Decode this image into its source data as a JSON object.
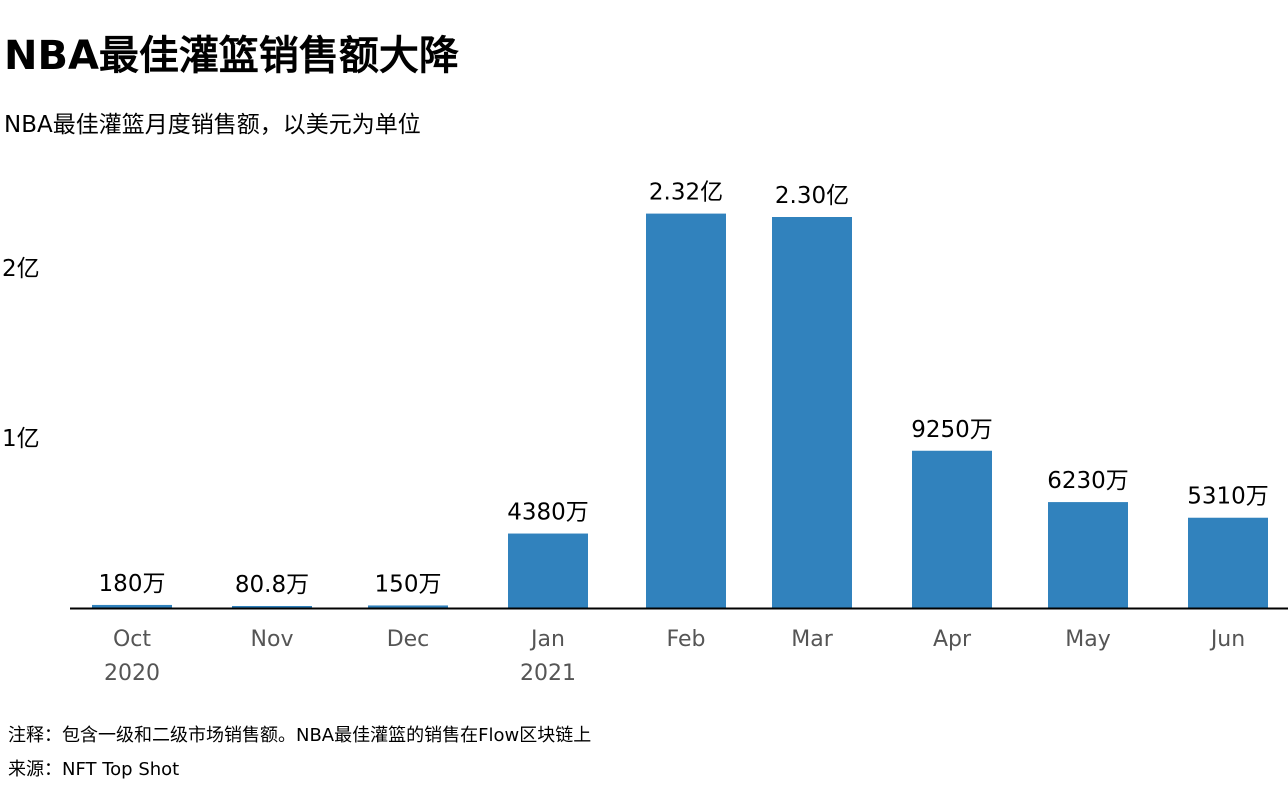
{
  "title": "NBA最佳灌篮销售额大降",
  "subtitle": "NBA最佳灌篮月度销售额，以美元为单位",
  "note": "注释：包含一级和二级市场销售额。NBA最佳灌篮的销售在Flow区块链上",
  "source": "来源：NFT Top Shot",
  "colors": {
    "bar": "#3182bd",
    "axis": "#000000",
    "tick_text": "#555555"
  },
  "chart_data": {
    "type": "bar",
    "categories": [
      "Oct 2020",
      "Nov",
      "Dec",
      "Jan 2021",
      "Feb",
      "Mar",
      "Apr",
      "May",
      "Jun"
    ],
    "category_labels": [
      [
        "Oct",
        "2020"
      ],
      [
        "Nov"
      ],
      [
        "Dec"
      ],
      [
        "Jan",
        "2021"
      ],
      [
        "Feb"
      ],
      [
        "Mar"
      ],
      [
        "Apr"
      ],
      [
        "May"
      ],
      [
        "Jun"
      ]
    ],
    "values": [
      1800000,
      808000,
      1500000,
      43800000,
      232000000,
      230000000,
      92500000,
      62300000,
      53100000
    ],
    "value_labels": [
      "180万",
      "80.8万",
      "150万",
      "4380万",
      "2.32亿",
      "2.30亿",
      "9250万",
      "6230万",
      "5310万"
    ],
    "yticks": [
      100000000,
      200000000
    ],
    "ytick_labels": [
      "1亿",
      "2亿"
    ],
    "ylim": [
      0,
      240000000
    ],
    "grid": false,
    "legend": "none"
  }
}
